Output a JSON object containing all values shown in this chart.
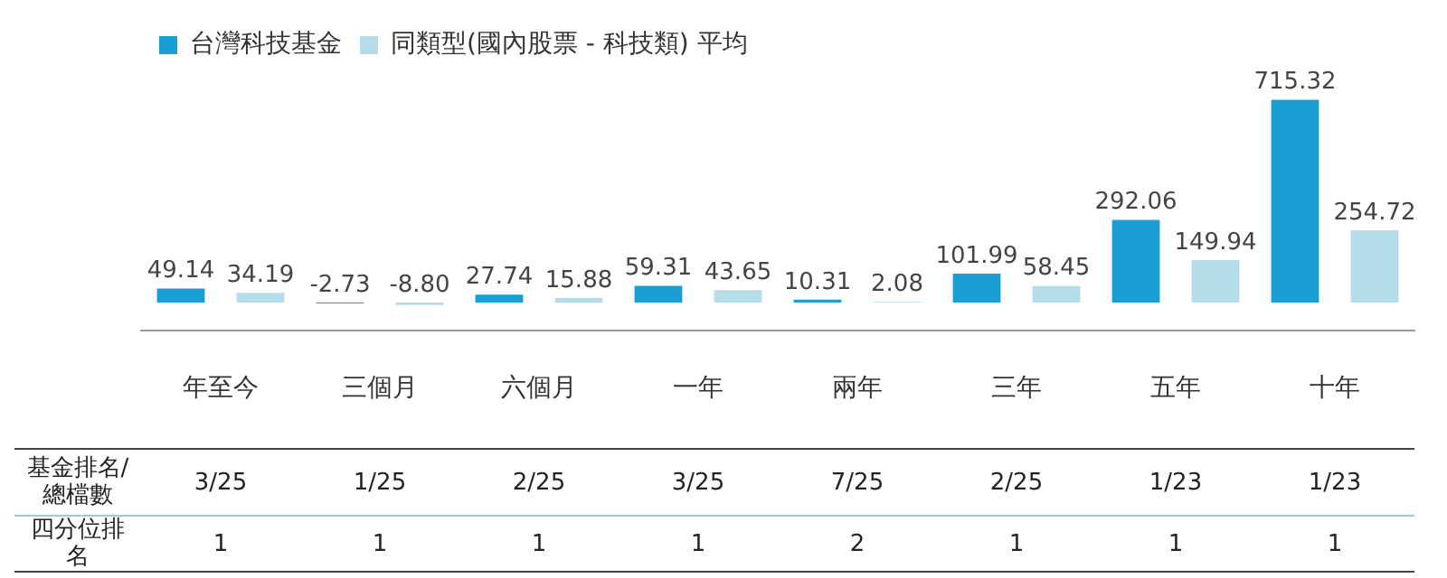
{
  "chart_data": {
    "type": "bar",
    "categories": [
      "年至今",
      "三個月",
      "六個月",
      "一年",
      "兩年",
      "三年",
      "五年",
      "十年"
    ],
    "series": [
      {
        "name": "台灣科技基金",
        "color": "#1a9fd4",
        "values": [
          49.14,
          -2.73,
          27.74,
          59.31,
          10.31,
          101.99,
          292.06,
          715.32
        ],
        "value_labels": [
          "49.14",
          "-2.73",
          "27.74",
          "59.31",
          "10.31",
          "101.99",
          "292.06",
          "715.32"
        ]
      },
      {
        "name": "同類型(國內股票 - 科技類) 平均",
        "color": "#b4dce9",
        "values": [
          34.19,
          -8.8,
          15.88,
          43.65,
          2.08,
          58.45,
          149.94,
          254.72
        ],
        "value_labels": [
          "34.19",
          "-8.80",
          "15.88",
          "43.65",
          "2.08",
          "58.45",
          "149.94",
          "254.72"
        ]
      }
    ],
    "legend": "top left",
    "grid": false,
    "annotations": [
      "基金排名/總檔數",
      "3/25",
      "1/25",
      "2/25",
      "3/25",
      "7/25",
      "2/25",
      "1/23",
      "1/23",
      "四分位排名",
      "1",
      "1",
      "1",
      "1",
      "2",
      "1",
      "1",
      "1"
    ]
  }
}
